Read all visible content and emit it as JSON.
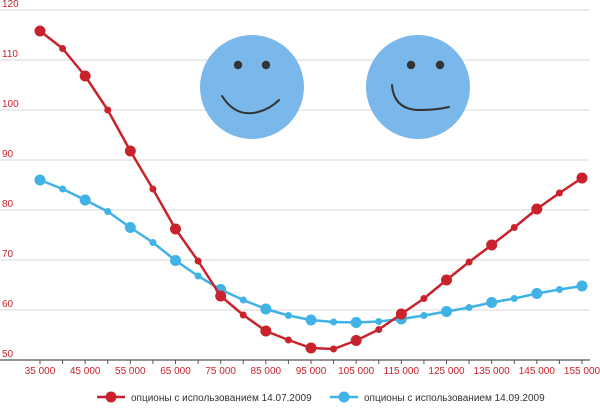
{
  "chart_data": {
    "type": "line",
    "title": "",
    "xlabel": "",
    "ylabel": "",
    "x": [
      35000,
      40000,
      45000,
      50000,
      55000,
      60000,
      65000,
      70000,
      75000,
      80000,
      85000,
      90000,
      95000,
      100000,
      105000,
      110000,
      115000,
      120000,
      125000,
      130000,
      135000,
      140000,
      145000,
      150000,
      155000
    ],
    "x_tick_labels": [
      "35 000",
      "45 000",
      "55 000",
      "65 000",
      "75 000",
      "85 000",
      "95 000",
      "105 000",
      "115 000",
      "125 000",
      "135 000",
      "145 000",
      "155 000"
    ],
    "x_ticks": [
      35000,
      45000,
      55000,
      65000,
      75000,
      85000,
      95000,
      105000,
      115000,
      125000,
      135000,
      145000,
      155000
    ],
    "y_ticks": [
      50,
      60,
      70,
      80,
      90,
      100,
      110,
      120
    ],
    "y_tick_labels": [
      "50",
      "60",
      "70",
      "80",
      "90",
      "100",
      "110",
      "120"
    ],
    "xlim": [
      35000,
      155000
    ],
    "ylim": [
      50,
      120
    ],
    "grid": "horizontal",
    "legend_position": "bottom",
    "series": [
      {
        "name": "опционы с использованием 14.07.2009",
        "color": "#c8232c",
        "values": [
          115.8,
          112.3,
          106.8,
          100.0,
          91.8,
          84.2,
          76.2,
          69.8,
          62.8,
          59.0,
          55.8,
          54.0,
          52.4,
          52.2,
          53.9,
          56.1,
          59.2,
          62.3,
          66.0,
          69.6,
          73.0,
          76.5,
          80.2,
          83.4,
          86.4
        ],
        "large_marker_every": 2
      },
      {
        "name": "опционы с использованием 14.09.2009",
        "color": "#40b2e6",
        "values": [
          86.0,
          84.2,
          82.0,
          79.7,
          76.5,
          73.5,
          69.9,
          66.8,
          64.1,
          62.0,
          60.2,
          58.9,
          58.0,
          57.6,
          57.5,
          57.7,
          58.2,
          58.9,
          59.7,
          60.5,
          61.5,
          62.3,
          63.3,
          64.1,
          64.8
        ],
        "large_marker_every": 2
      }
    ]
  },
  "decor": {
    "face_color": "#7ab7ea",
    "face_feature_color": "#333333",
    "faces": [
      "smiley-face-icon",
      "smiley-face-icon"
    ]
  }
}
